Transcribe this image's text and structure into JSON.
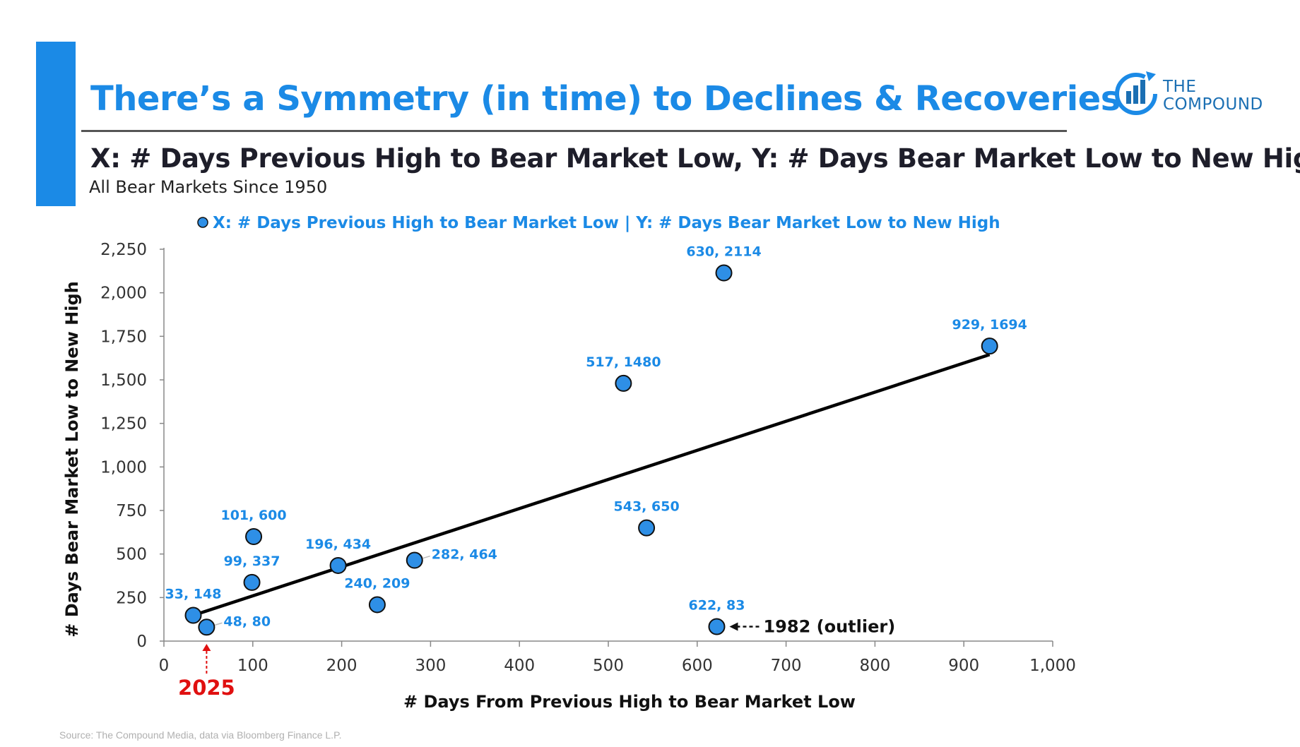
{
  "header": {
    "title": "There’s a Symmetry (in time) to Declines & Recoveries",
    "subtitle": "X: # Days Previous High to Bear Market Low, Y: # Days Bear Market Low to New High",
    "caption": "All Bear Markets Since 1950"
  },
  "brand": {
    "line1": "THE",
    "line2": "COMPOUND",
    "color": "#1b6fb3"
  },
  "footer": {
    "source": "Source: The Compound Media, data via Bloomberg Finance L.P."
  },
  "colors": {
    "accent": "#1b8ae6",
    "point": "#2e8fe6",
    "trend": "#000000",
    "highlight": "#e01010"
  },
  "chart_data": {
    "type": "scatter",
    "legend": "X: # Days Previous High to Bear Market Low | Y: # Days Bear Market Low to New High",
    "xlabel": "# Days From Previous High to Bear Market Low",
    "ylabel": "# Days Bear Market Low to New High",
    "xlim": [
      0,
      1000
    ],
    "ylim": [
      0,
      2250
    ],
    "xticks": [
      0,
      100,
      200,
      300,
      400,
      500,
      600,
      700,
      800,
      900,
      1000
    ],
    "yticks": [
      0,
      250,
      500,
      750,
      1000,
      1250,
      1500,
      1750,
      2000,
      2250
    ],
    "xtick_labels": [
      "0",
      "100",
      "200",
      "300",
      "400",
      "500",
      "600",
      "700",
      "800",
      "900",
      "1,000"
    ],
    "ytick_labels": [
      "0",
      "250",
      "500",
      "750",
      "1,000",
      "1,250",
      "1,500",
      "1,750",
      "2,000",
      "2,250"
    ],
    "points": [
      {
        "x": 33,
        "y": 148,
        "label": "33, 148",
        "pos": "above"
      },
      {
        "x": 48,
        "y": 80,
        "label": "48, 80",
        "pos": "right"
      },
      {
        "x": 99,
        "y": 337,
        "label": "99, 337",
        "pos": "above"
      },
      {
        "x": 101,
        "y": 600,
        "label": "101, 600",
        "pos": "above"
      },
      {
        "x": 196,
        "y": 434,
        "label": "196, 434",
        "pos": "above"
      },
      {
        "x": 240,
        "y": 209,
        "label": "240, 209",
        "pos": "above"
      },
      {
        "x": 282,
        "y": 464,
        "label": "282, 464",
        "pos": "right"
      },
      {
        "x": 517,
        "y": 1480,
        "label": "517, 1480",
        "pos": "above"
      },
      {
        "x": 543,
        "y": 650,
        "label": "543, 650",
        "pos": "above"
      },
      {
        "x": 622,
        "y": 83,
        "label": "622, 83",
        "pos": "above"
      },
      {
        "x": 630,
        "y": 2114,
        "label": "630, 2114",
        "pos": "above"
      },
      {
        "x": 929,
        "y": 1694,
        "label": "929, 1694",
        "pos": "above"
      }
    ],
    "trendline": {
      "x": [
        33,
        929
      ],
      "y": [
        148,
        1645
      ]
    },
    "annotations": [
      {
        "text": "1982 (outlier)",
        "x": 622,
        "y": 83
      },
      {
        "text": "2025",
        "x": 48,
        "y": 0
      }
    ]
  }
}
